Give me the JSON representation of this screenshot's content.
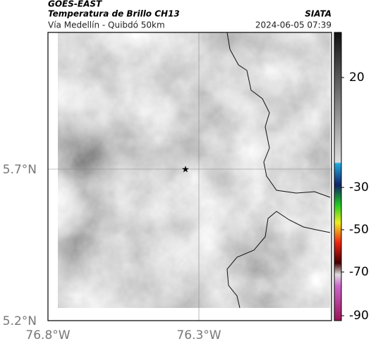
{
  "header": {
    "product": "GOES-EAST",
    "title": "Temperatura de Brillo CH13",
    "subtitle": "Vía Medellín - Quibdó 50km",
    "source": "SIATA",
    "datetime": "2024-06-05 07:39"
  },
  "map": {
    "yticks": [
      "5.7°N",
      "5.2°N"
    ],
    "xticks": [
      "76.8°W",
      "76.3°W"
    ]
  },
  "colorbar": {
    "ticks": [
      20,
      -30,
      -50,
      -70,
      -90
    ]
  }
}
